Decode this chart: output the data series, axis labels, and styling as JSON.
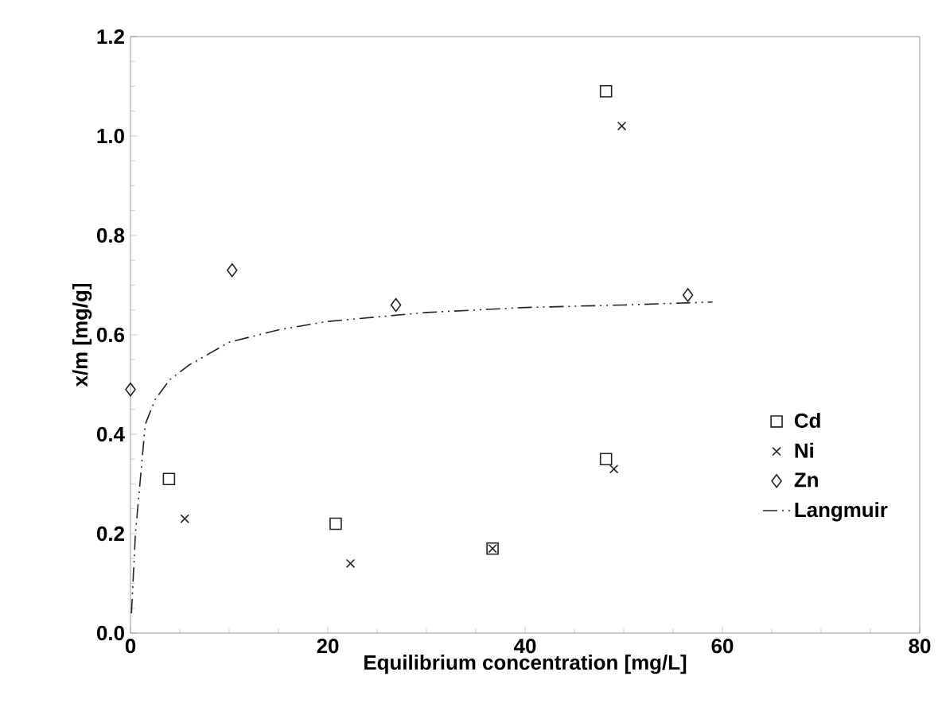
{
  "chart_data": {
    "type": "scatter",
    "xlabel": "Equilibrium concentration [mg/L]",
    "ylabel": "x/m [mg/g]",
    "xlim": [
      0,
      80
    ],
    "xticks": [
      0,
      20,
      40,
      60,
      80
    ],
    "ylim": [
      0,
      1.2
    ],
    "yticks": [
      {
        "value": 0,
        "label": "0.0"
      },
      0.2,
      0.4,
      0.6,
      0.8,
      {
        "value": 1,
        "label": "1.0"
      },
      1.2
    ],
    "grid": false,
    "legend": "right",
    "series": [
      {
        "name": "Cd",
        "color": "#222222",
        "marker": "square",
        "x": [
          3.9,
          20.8,
          36.7,
          48.2,
          48.2
        ],
        "values": [
          0.31,
          0.22,
          0.17,
          0.35,
          1.09
        ]
      },
      {
        "name": "Ni",
        "color": "#222222",
        "marker": "cross",
        "x": [
          5.5,
          22.3,
          36.7,
          49.0,
          49.8
        ],
        "values": [
          0.23,
          0.14,
          0.17,
          0.33,
          1.02
        ]
      },
      {
        "name": "Zn",
        "color": "#222222",
        "marker": "diamond",
        "x": [
          0,
          10.3,
          26.9,
          56.5
        ],
        "values": [
          0.49,
          0.73,
          0.66,
          0.68
        ]
      },
      {
        "name": "Langmuir",
        "type": "line",
        "color": "#222222",
        "marker": "none",
        "line_style": "dashed",
        "x": [
          0.1,
          0.5,
          1,
          1.5,
          2.5,
          4,
          6,
          10,
          15,
          20,
          30,
          40,
          50,
          59
        ],
        "values": [
          0.04,
          0.2,
          0.31,
          0.42,
          0.47,
          0.51,
          0.54,
          0.585,
          0.61,
          0.627,
          0.645,
          0.655,
          0.66,
          0.666
        ]
      }
    ]
  }
}
